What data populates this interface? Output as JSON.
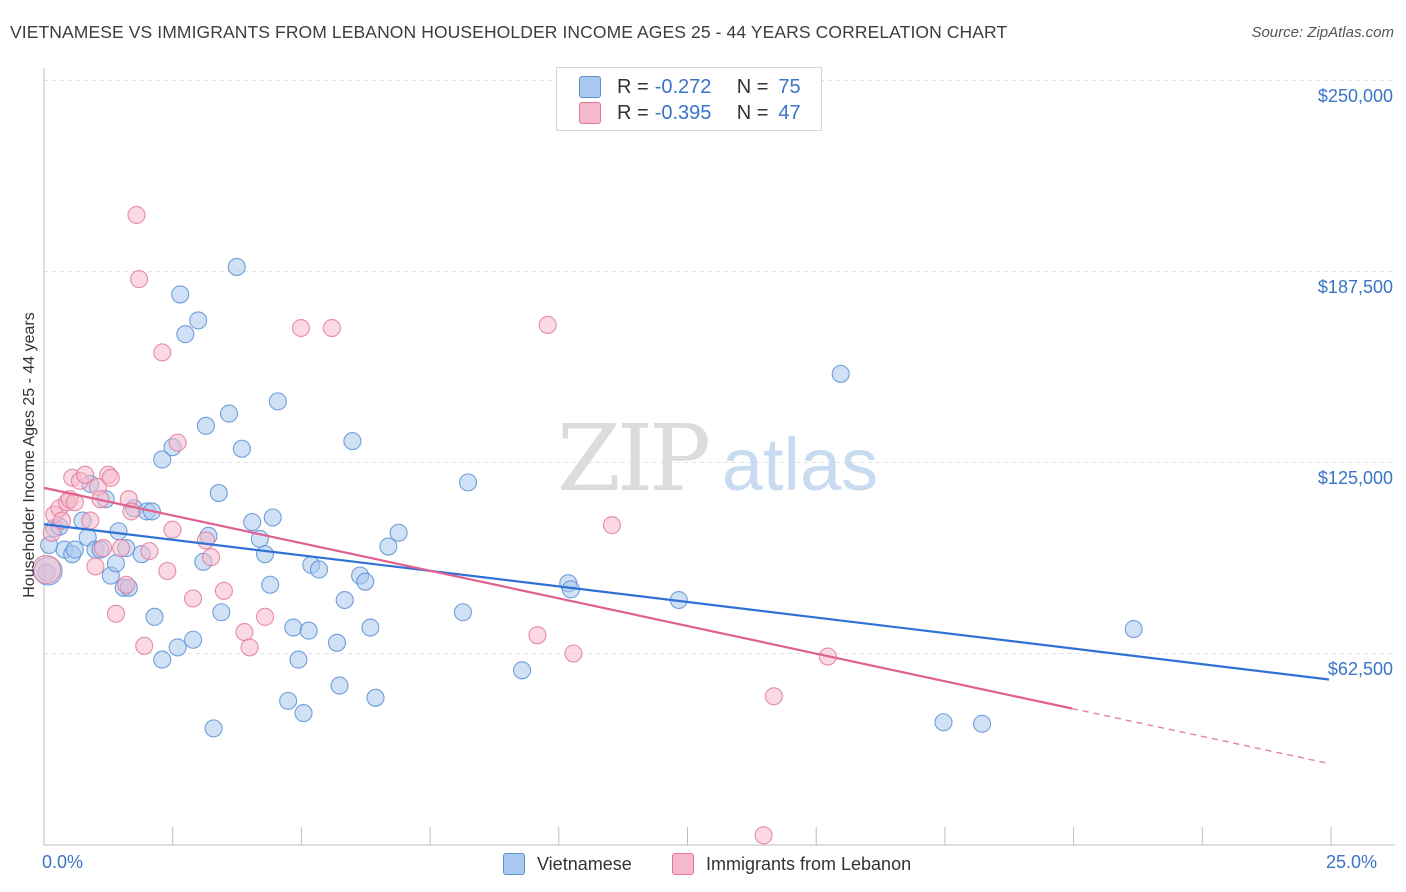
{
  "title": "VIETNAMESE VS IMMIGRANTS FROM LEBANON HOUSEHOLDER INCOME AGES 25 - 44 YEARS CORRELATION CHART",
  "source": "Source: ZipAtlas.com",
  "watermark": "ZIPatlas",
  "colors": {
    "blue_fill": "#a9c8ee",
    "blue_stroke": "#5b8fd6",
    "blue_line": "#2f72d6",
    "pink_fill": "#f6b9cb",
    "pink_stroke": "#e07a9c",
    "pink_line": "#e0608f",
    "grid": "#e2e2e2",
    "tick_label": "#3a74c6"
  },
  "legend_top": [
    {
      "r_label": "R =",
      "r_value": "-0.272",
      "n_label": "N =",
      "n_value": "75",
      "color": "#a9c8ee"
    },
    {
      "r_label": "R =",
      "r_value": "-0.395",
      "n_label": "N =",
      "n_value": "47",
      "color": "#f6b9cb"
    }
  ],
  "legend_bottom": [
    {
      "label": "Vietnamese",
      "color": "#a9c8ee"
    },
    {
      "label": "Immigrants from Lebanon",
      "color": "#f6b9cb"
    }
  ],
  "chart_data": {
    "type": "scatter",
    "xlabel": "",
    "ylabel": "Householder Income Ages 25 - 44 years",
    "xlim": [
      0,
      25
    ],
    "ylim": [
      0,
      255000
    ],
    "x_ticks": [
      "0.0%",
      "25.0%"
    ],
    "y_ticks": [
      {
        "value": 62500,
        "label": "$62,500"
      },
      {
        "value": 125000,
        "label": "$125,000"
      },
      {
        "value": 187500,
        "label": "$187,500"
      },
      {
        "value": 250000,
        "label": "$250,000"
      }
    ],
    "grid": "horizontal dashed",
    "series": [
      {
        "name": "Vietnamese",
        "trend": {
          "x": [
            0,
            25
          ],
          "y": [
            104800,
            54000
          ],
          "style": "solid"
        },
        "points": [
          [
            0.05,
            89000
          ],
          [
            0.1,
            98000
          ],
          [
            0.2,
            103500
          ],
          [
            0.3,
            104000
          ],
          [
            0.4,
            96500
          ],
          [
            0.55,
            95000
          ],
          [
            0.6,
            96500
          ],
          [
            0.75,
            106000
          ],
          [
            0.85,
            100500
          ],
          [
            0.9,
            118000
          ],
          [
            1.0,
            96500
          ],
          [
            1.1,
            96500
          ],
          [
            1.2,
            113000
          ],
          [
            1.3,
            88000
          ],
          [
            1.4,
            92000
          ],
          [
            1.45,
            102500
          ],
          [
            1.55,
            84000
          ],
          [
            1.6,
            97000
          ],
          [
            1.65,
            84000
          ],
          [
            1.75,
            110000
          ],
          [
            1.9,
            95000
          ],
          [
            2.0,
            109000
          ],
          [
            2.1,
            109000
          ],
          [
            2.15,
            74500
          ],
          [
            2.3,
            60500
          ],
          [
            2.3,
            126000
          ],
          [
            2.5,
            130000
          ],
          [
            2.6,
            64500
          ],
          [
            2.65,
            180000
          ],
          [
            2.75,
            167000
          ],
          [
            2.9,
            67000
          ],
          [
            3.0,
            171500
          ],
          [
            3.1,
            92500
          ],
          [
            3.15,
            137000
          ],
          [
            3.2,
            101000
          ],
          [
            3.3,
            38000
          ],
          [
            3.4,
            115000
          ],
          [
            3.45,
            76000
          ],
          [
            3.6,
            141000
          ],
          [
            3.75,
            189000
          ],
          [
            3.85,
            129500
          ],
          [
            4.05,
            105500
          ],
          [
            4.2,
            100000
          ],
          [
            4.3,
            95000
          ],
          [
            4.4,
            85000
          ],
          [
            4.45,
            107000
          ],
          [
            4.55,
            145000
          ],
          [
            4.75,
            47000
          ],
          [
            4.85,
            71000
          ],
          [
            4.95,
            60500
          ],
          [
            5.05,
            43000
          ],
          [
            5.15,
            70000
          ],
          [
            5.2,
            91500
          ],
          [
            5.35,
            90000
          ],
          [
            5.7,
            66000
          ],
          [
            5.75,
            52000
          ],
          [
            5.85,
            80000
          ],
          [
            6.0,
            132000
          ],
          [
            6.15,
            88000
          ],
          [
            6.25,
            86000
          ],
          [
            6.35,
            71000
          ],
          [
            6.45,
            48000
          ],
          [
            6.7,
            97500
          ],
          [
            6.9,
            102000
          ],
          [
            8.15,
            76000
          ],
          [
            8.25,
            118500
          ],
          [
            9.3,
            57000
          ],
          [
            10.2,
            85500
          ],
          [
            10.25,
            83500
          ],
          [
            12.35,
            80000
          ],
          [
            15.5,
            154000
          ],
          [
            17.5,
            40000
          ],
          [
            18.25,
            39500
          ],
          [
            21.2,
            70500
          ],
          [
            0.08,
            89500
          ]
        ]
      },
      {
        "name": "Immigrants from Lebanon",
        "trend": {
          "x": [
            0,
            20
          ],
          "y": [
            116700,
            44500
          ],
          "style": "solid"
        },
        "trend_ext": {
          "x": [
            20,
            25
          ],
          "y": [
            44500,
            26500
          ],
          "style": "dashed"
        },
        "points": [
          [
            0.05,
            90000
          ],
          [
            0.15,
            102000
          ],
          [
            0.2,
            108000
          ],
          [
            0.3,
            110000
          ],
          [
            0.35,
            106000
          ],
          [
            0.45,
            112000
          ],
          [
            0.5,
            113000
          ],
          [
            0.55,
            120000
          ],
          [
            0.6,
            112000
          ],
          [
            0.7,
            119000
          ],
          [
            0.8,
            121000
          ],
          [
            0.9,
            106000
          ],
          [
            1.0,
            91000
          ],
          [
            1.05,
            117000
          ],
          [
            1.1,
            113000
          ],
          [
            1.15,
            97000
          ],
          [
            1.25,
            121000
          ],
          [
            1.3,
            120000
          ],
          [
            1.4,
            75500
          ],
          [
            1.5,
            97000
          ],
          [
            1.6,
            85000
          ],
          [
            1.65,
            113000
          ],
          [
            1.7,
            109000
          ],
          [
            1.8,
            206000
          ],
          [
            1.85,
            185000
          ],
          [
            1.95,
            65000
          ],
          [
            2.05,
            96000
          ],
          [
            2.3,
            161000
          ],
          [
            2.4,
            89500
          ],
          [
            2.5,
            103000
          ],
          [
            2.6,
            131500
          ],
          [
            2.9,
            80500
          ],
          [
            3.15,
            99500
          ],
          [
            3.25,
            94000
          ],
          [
            3.5,
            83000
          ],
          [
            3.9,
            69500
          ],
          [
            4.0,
            64500
          ],
          [
            4.3,
            74500
          ],
          [
            5.0,
            169000
          ],
          [
            5.6,
            169000
          ],
          [
            9.8,
            170000
          ],
          [
            9.6,
            68500
          ],
          [
            10.3,
            62500
          ],
          [
            11.05,
            104500
          ],
          [
            14.2,
            48500
          ],
          [
            15.25,
            61500
          ],
          [
            14.0,
            3000
          ]
        ]
      }
    ]
  }
}
